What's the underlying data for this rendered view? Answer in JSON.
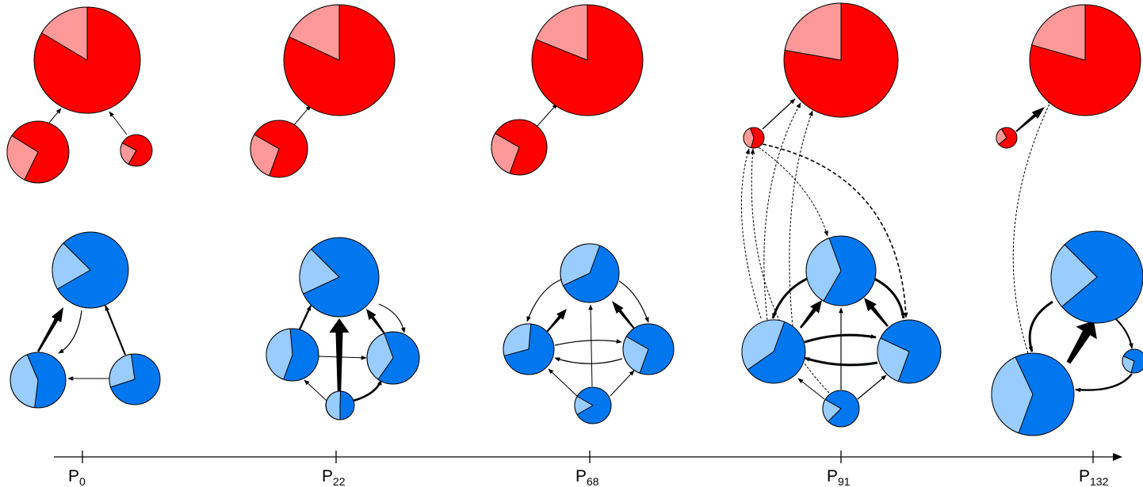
{
  "colors": {
    "red_dark": "#ff0000",
    "red_light": "#ff9999",
    "blue_dark": "#0077ee",
    "blue_light": "#99ccff",
    "stroke": "#000000"
  },
  "timeline": {
    "ticks": [
      {
        "label": "P",
        "sub": "0"
      },
      {
        "label": "P",
        "sub": "22"
      },
      {
        "label": "P",
        "sub": "68"
      },
      {
        "label": "P",
        "sub": "91"
      },
      {
        "label": "P",
        "sub": "132"
      }
    ]
  }
}
